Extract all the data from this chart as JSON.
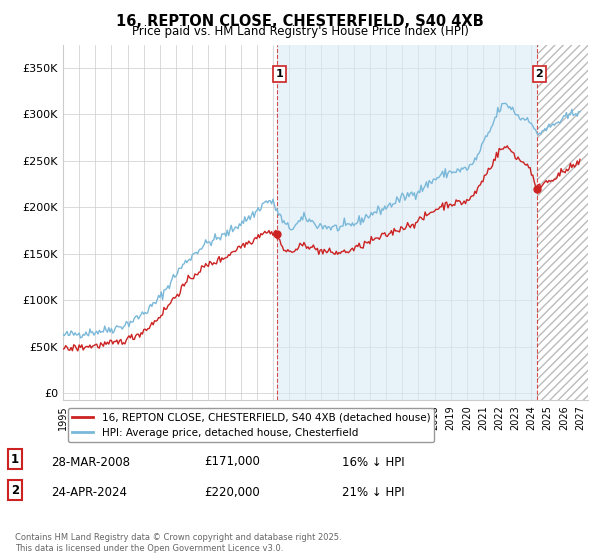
{
  "title": "16, REPTON CLOSE, CHESTERFIELD, S40 4XB",
  "subtitle": "Price paid vs. HM Land Registry's House Price Index (HPI)",
  "yticks": [
    0,
    50000,
    100000,
    150000,
    200000,
    250000,
    300000,
    350000
  ],
  "ytick_labels": [
    "£0",
    "£50K",
    "£100K",
    "£150K",
    "£200K",
    "£250K",
    "£300K",
    "£350K"
  ],
  "xlim_start": 1995.0,
  "xlim_end": 2027.5,
  "ylim": [
    -8000,
    375000
  ],
  "hpi_color": "#7ab8d9",
  "hpi_fill_color": "#daeaf5",
  "price_color": "#cc2222",
  "annotation_color": "#cc2222",
  "grid_color": "#cccccc",
  "hatch_color": "#dddddd",
  "legend_label_price": "16, REPTON CLOSE, CHESTERFIELD, S40 4XB (detached house)",
  "legend_label_hpi": "HPI: Average price, detached house, Chesterfield",
  "transaction1_label": "1",
  "transaction1_date": "28-MAR-2008",
  "transaction1_price": "£171,000",
  "transaction1_pct": "16% ↓ HPI",
  "transaction2_label": "2",
  "transaction2_date": "24-APR-2024",
  "transaction2_price": "£220,000",
  "transaction2_pct": "21% ↓ HPI",
  "copyright_text": "Contains HM Land Registry data © Crown copyright and database right 2025.\nThis data is licensed under the Open Government Licence v3.0.",
  "marker1_x": 2008.25,
  "marker1_y": 171000,
  "marker2_x": 2024.33,
  "marker2_y": 220000,
  "vline1_x": 2008.25,
  "vline2_x": 2024.33,
  "shade_start_x": 2008.25,
  "shade_end_x": 2024.33,
  "hatch_start_x": 2024.33
}
